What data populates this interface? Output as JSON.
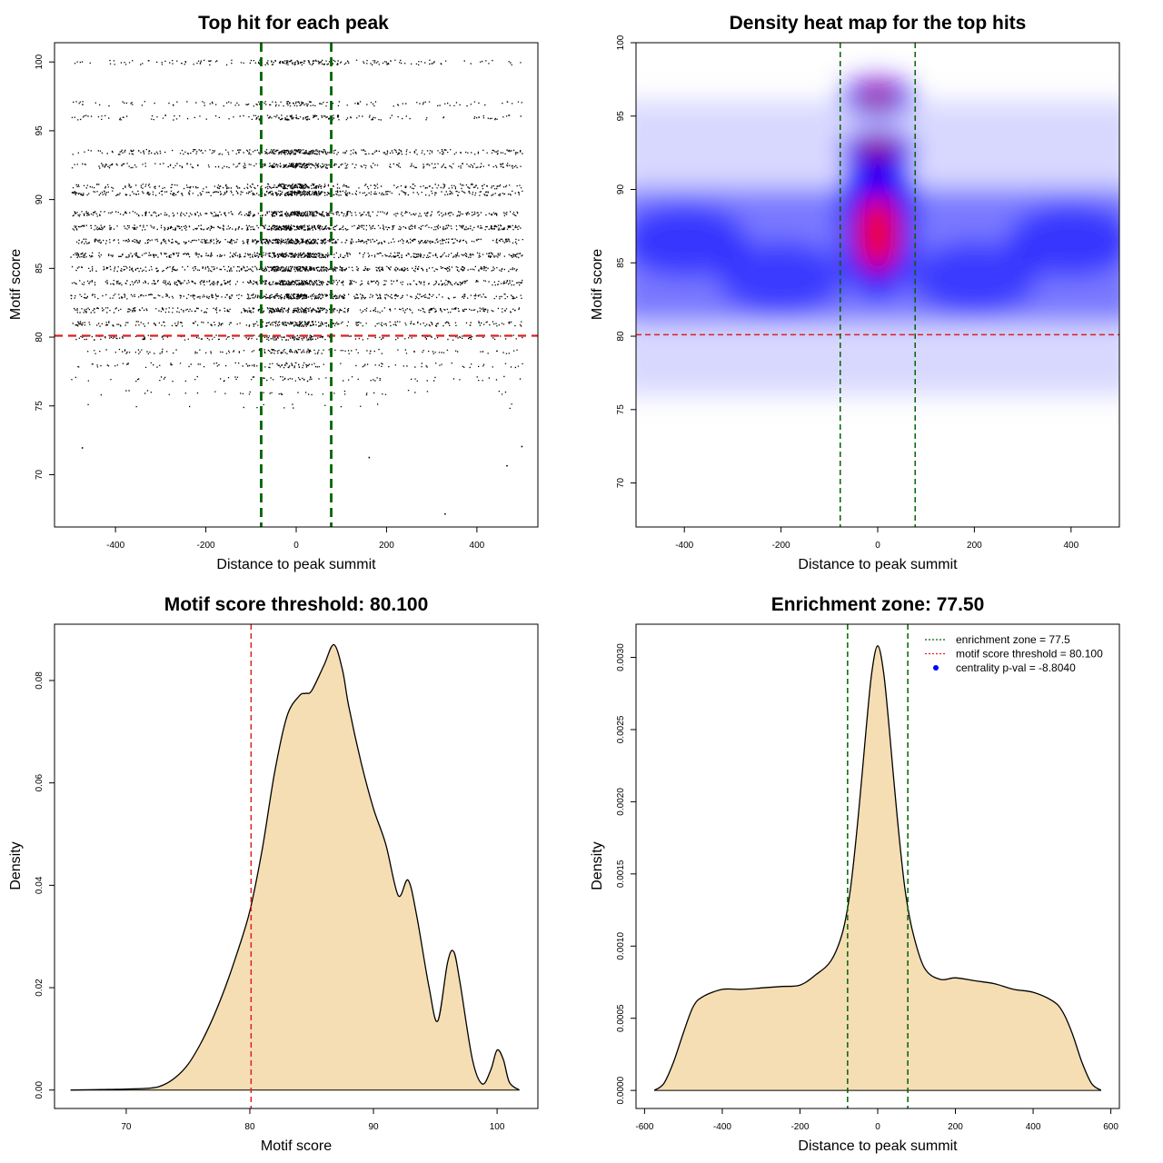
{
  "chart_data": [
    {
      "type": "scatter",
      "title": "Top hit for each peak",
      "xlabel": "Distance to peak summit",
      "ylabel": "Motif score",
      "xlim": [
        -535,
        535
      ],
      "ylim": [
        66.2,
        101.4
      ],
      "xticks": [
        -400,
        -200,
        0,
        200,
        400
      ],
      "yticks": [
        70,
        75,
        80,
        85,
        90,
        95,
        100
      ],
      "x_range": [
        -500,
        500
      ],
      "score_levels": [
        {
          "y": 100,
          "weight": 0.35
        },
        {
          "y": 97,
          "weight": 0.25
        },
        {
          "y": 96,
          "weight": 0.3
        },
        {
          "y": 93.5,
          "weight": 0.6
        },
        {
          "y": 92.5,
          "weight": 0.55
        },
        {
          "y": 91,
          "weight": 0.55
        },
        {
          "y": 90.5,
          "weight": 0.7
        },
        {
          "y": 89,
          "weight": 0.85
        },
        {
          "y": 88,
          "weight": 1.0
        },
        {
          "y": 87,
          "weight": 1.0
        },
        {
          "y": 86,
          "weight": 1.0
        },
        {
          "y": 85,
          "weight": 0.95
        },
        {
          "y": 84,
          "weight": 0.9
        },
        {
          "y": 83,
          "weight": 0.85
        },
        {
          "y": 82,
          "weight": 0.75
        },
        {
          "y": 81,
          "weight": 0.6
        },
        {
          "y": 80,
          "weight": 0.4
        },
        {
          "y": 79,
          "weight": 0.3
        },
        {
          "y": 78,
          "weight": 0.25
        },
        {
          "y": 77,
          "weight": 0.15
        },
        {
          "y": 76,
          "weight": 0.08
        },
        {
          "y": 75,
          "weight": 0.03
        }
      ],
      "outliers": [
        {
          "x": -475,
          "y": 72
        },
        {
          "x": 160,
          "y": 71.3
        },
        {
          "x": 465,
          "y": 70.7
        },
        {
          "x": 328,
          "y": 67.2
        },
        {
          "x": 498,
          "y": 72.1
        }
      ],
      "threshold_y": 80.1,
      "enrichment_zone": [
        -77.5,
        77.5
      ],
      "colors": {
        "points": "#000000",
        "threshold": "#dd2020",
        "zone": "#006400"
      }
    },
    {
      "type": "heatmap",
      "title": "Density heat map for the top hits",
      "xlabel": "Distance to peak summit",
      "ylabel": "Motif score",
      "xlim": [
        -500,
        500
      ],
      "ylim": [
        67,
        100
      ],
      "xticks": [
        -400,
        -200,
        0,
        200,
        400
      ],
      "yticks": [
        70,
        75,
        80,
        85,
        90,
        95,
        100
      ],
      "hot_spots": [
        {
          "x": 0,
          "y": 88.5,
          "intensity": 1.0
        },
        {
          "x": 0,
          "y": 87,
          "intensity": 0.95
        },
        {
          "x": 0,
          "y": 92.7,
          "intensity": 0.55
        },
        {
          "x": 0,
          "y": 96.3,
          "intensity": 0.5
        },
        {
          "x": -400,
          "y": 86.5,
          "intensity": 0.35
        },
        {
          "x": 400,
          "y": 86.5,
          "intensity": 0.35
        },
        {
          "x": -200,
          "y": 84,
          "intensity": 0.3
        },
        {
          "x": 200,
          "y": 84,
          "intensity": 0.3
        }
      ],
      "threshold_y": 80.1,
      "enrichment_zone": [
        -77.5,
        77.5
      ],
      "colors": {
        "low": "#ffffff",
        "mid": "#0000ff",
        "high": "#ff0000",
        "threshold": "#dd2020",
        "zone": "#006400"
      }
    },
    {
      "type": "area",
      "title": "Motif score threshold: 80.100",
      "xlabel": "Motif score",
      "ylabel": "Density",
      "xlim": [
        64.2,
        103.3
      ],
      "ylim": [
        -0.0036,
        0.091
      ],
      "xticks": [
        70,
        80,
        90,
        100
      ],
      "yticks": [
        0.0,
        0.02,
        0.04,
        0.06,
        0.08
      ],
      "ytick_labels": [
        "0.00",
        "0.02",
        "0.04",
        "0.06",
        "0.08"
      ],
      "x": [
        65.5,
        68,
        70,
        72,
        73,
        74,
        75,
        76,
        77,
        78,
        79,
        80,
        81,
        82,
        83,
        84,
        84.5,
        85,
        86,
        86.8,
        87.5,
        88,
        89,
        90,
        91,
        92,
        92.8,
        93.5,
        94.5,
        95.2,
        96,
        96.5,
        97,
        98,
        98.8,
        99.5,
        100,
        100.5,
        101,
        101.8
      ],
      "y": [
        0.0,
        0.0001,
        0.0002,
        0.0004,
        0.001,
        0.0025,
        0.005,
        0.009,
        0.014,
        0.02,
        0.027,
        0.035,
        0.047,
        0.062,
        0.073,
        0.077,
        0.0775,
        0.078,
        0.083,
        0.087,
        0.082,
        0.075,
        0.064,
        0.055,
        0.048,
        0.038,
        0.041,
        0.034,
        0.02,
        0.0135,
        0.025,
        0.027,
        0.021,
        0.006,
        0.0012,
        0.004,
        0.0078,
        0.006,
        0.0015,
        0.0
      ],
      "threshold_x": 80.1,
      "colors": {
        "fill": "#f5deb3",
        "line": "#000000",
        "threshold": "#dd2020"
      }
    },
    {
      "type": "area",
      "title": "Enrichment zone: 77.50",
      "xlabel": "Distance to peak summit",
      "ylabel": "Density",
      "xlim": [
        -622,
        622
      ],
      "ylim": [
        -0.000125,
        0.00323
      ],
      "xticks": [
        -600,
        -400,
        -200,
        0,
        200,
        400,
        600
      ],
      "yticks": [
        0.0,
        0.0005,
        0.001,
        0.0015,
        0.002,
        0.0025,
        0.003
      ],
      "ytick_labels": [
        "0.0000",
        "0.0005",
        "0.0010",
        "0.0015",
        "0.0020",
        "0.0025",
        "0.0030"
      ],
      "x": [
        -575,
        -550,
        -525,
        -500,
        -475,
        -450,
        -400,
        -350,
        -300,
        -250,
        -200,
        -160,
        -120,
        -90,
        -70,
        -50,
        -30,
        -15,
        0,
        15,
        30,
        50,
        70,
        90,
        120,
        160,
        200,
        250,
        300,
        350,
        400,
        450,
        475,
        500,
        525,
        550,
        575
      ],
      "y": [
        0.0,
        5e-05,
        0.0002,
        0.0004,
        0.00058,
        0.00065,
        0.0007,
        0.0007,
        0.00071,
        0.00072,
        0.00073,
        0.0008,
        0.0009,
        0.0011,
        0.0014,
        0.0019,
        0.0025,
        0.0029,
        0.00308,
        0.0029,
        0.0025,
        0.0019,
        0.0014,
        0.0011,
        0.00085,
        0.00077,
        0.00078,
        0.00076,
        0.00074,
        0.0007,
        0.00068,
        0.00062,
        0.00055,
        0.0004,
        0.0002,
        5e-05,
        0.0
      ],
      "zone_x": [
        -77.5,
        77.5
      ],
      "legend_position": "top-right",
      "legend": [
        {
          "label": "enrichment zone = 77.5",
          "kind": "dotted-line",
          "color": "#006400"
        },
        {
          "label": "motif score threshold = 80.100",
          "kind": "dotted-line",
          "color": "#dd2020"
        },
        {
          "label": "centrality p-val = -8.8040",
          "kind": "point",
          "color": "#0000ff"
        }
      ],
      "colors": {
        "fill": "#f5deb3",
        "line": "#000000",
        "zone": "#006400"
      }
    }
  ]
}
